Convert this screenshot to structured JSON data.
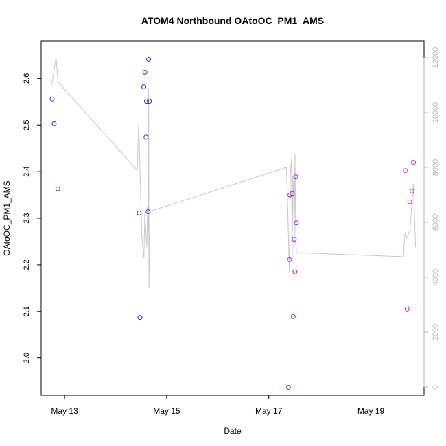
{
  "chart_data": {
    "type": "scatter",
    "title": "ATOM4 Northbound OAtoOC_PM1_AMS",
    "xlabel": "Date",
    "ylabel": "OAtoOC_PM1_AMS",
    "x_ticks": [
      "May 13",
      "May 15",
      "May 17",
      "May 19"
    ],
    "x_tick_dates": [
      "2018-05-13",
      "2018-05-15",
      "2018-05-17",
      "2018-05-19"
    ],
    "xlim": [
      "2018-05-12 13:00",
      "2018-05-20 01:00"
    ],
    "ylim": [
      1.92,
      2.68
    ],
    "y_ticks": [
      2.0,
      2.1,
      2.2,
      2.3,
      2.4,
      2.5,
      2.6
    ],
    "y_tick_labels": [
      "2.0",
      "2.1",
      "2.2",
      "2.3",
      "2.4",
      "2.5",
      "2.6"
    ],
    "y2lim": [
      -300,
      12600
    ],
    "y2_ticks": [
      0,
      2000,
      4000,
      6000,
      8000,
      10000,
      12000
    ],
    "y2_tick_labels": [
      "0",
      "2000",
      "4000",
      "6000",
      "8000",
      "10000",
      "12000"
    ],
    "grid": false,
    "colors": {
      "line": "#c8c8c8",
      "axis": "#000000",
      "axis2": "#b4b4b4",
      "early": "#2a2af0",
      "mid": "#8a2ad8",
      "late": "#e020e0"
    },
    "points": [
      {
        "x": "2018-05-12 18:10",
        "y": 2.556,
        "color": "#2a2af0"
      },
      {
        "x": "2018-05-12 19:05",
        "y": 2.503,
        "color": "#2a2af0"
      },
      {
        "x": "2018-05-12 20:50",
        "y": 2.363,
        "color": "#2a2af0"
      },
      {
        "x": "2018-05-14 11:05",
        "y": 2.311,
        "color": "#2a2af0"
      },
      {
        "x": "2018-05-14 11:25",
        "y": 2.087,
        "color": "#2a2af0"
      },
      {
        "x": "2018-05-14 13:15",
        "y": 2.582,
        "color": "#2a2af0"
      },
      {
        "x": "2018-05-14 13:45",
        "y": 2.613,
        "color": "#2a2af0"
      },
      {
        "x": "2018-05-14 14:15",
        "y": 2.474,
        "color": "#2a2af0"
      },
      {
        "x": "2018-05-14 14:30",
        "y": 2.551,
        "color": "#2a2af0"
      },
      {
        "x": "2018-05-14 15:15",
        "y": 2.314,
        "color": "#2a2af0"
      },
      {
        "x": "2018-05-14 15:30",
        "y": 2.641,
        "color": "#2a2af0"
      },
      {
        "x": "2018-05-14 15:50",
        "y": 2.551,
        "color": "#2a2af0"
      },
      {
        "x": "2018-05-17 09:15",
        "y": 1.937,
        "color": "#8a2ad8"
      },
      {
        "x": "2018-05-17 09:45",
        "y": 2.211,
        "color": "#8a2ad8"
      },
      {
        "x": "2018-05-17 10:00",
        "y": 2.35,
        "color": "#8a2ad8"
      },
      {
        "x": "2018-05-17 11:00",
        "y": 2.353,
        "color": "#8a2ad8"
      },
      {
        "x": "2018-05-17 11:30",
        "y": 2.089,
        "color": "#8a2ad8"
      },
      {
        "x": "2018-05-17 12:00",
        "y": 2.255,
        "color": "#8a2ad8"
      },
      {
        "x": "2018-05-17 12:20",
        "y": 2.185,
        "color": "#8a2ad8"
      },
      {
        "x": "2018-05-17 12:40",
        "y": 2.389,
        "color": "#8a2ad8"
      },
      {
        "x": "2018-05-17 13:00",
        "y": 2.29,
        "color": "#8a2ad8"
      },
      {
        "x": "2018-05-19 16:15",
        "y": 2.402,
        "color": "#e020e0"
      },
      {
        "x": "2018-05-19 17:00",
        "y": 2.105,
        "color": "#e020e0"
      },
      {
        "x": "2018-05-19 18:15",
        "y": 2.335,
        "color": "#e020e0"
      },
      {
        "x": "2018-05-19 19:20",
        "y": 2.358,
        "color": "#e020e0"
      },
      {
        "x": "2018-05-19 20:00",
        "y": 2.42,
        "color": "#e020e0"
      }
    ],
    "line_series": {
      "axis": "right",
      "points": [
        [
          "2018-05-12 18:00",
          11000
        ],
        [
          "2018-05-12 20:00",
          12000
        ],
        [
          "2018-05-12 21:00",
          11100
        ],
        [
          "2018-05-14 10:10",
          7900
        ],
        [
          "2018-05-14 10:50",
          9600
        ],
        [
          "2018-05-14 11:20",
          8400
        ],
        [
          "2018-05-14 12:20",
          5500
        ],
        [
          "2018-05-14 13:20",
          4700
        ],
        [
          "2018-05-14 13:40",
          6300
        ],
        [
          "2018-05-14 14:40",
          5100
        ],
        [
          "2018-05-14 15:00",
          6600
        ],
        [
          "2018-05-14 15:20",
          5600
        ],
        [
          "2018-05-14 15:30",
          10900
        ],
        [
          "2018-05-14 15:40",
          3600
        ],
        [
          "2018-05-14 16:10",
          6400
        ],
        [
          "2018-05-17 08:20",
          8000
        ],
        [
          "2018-05-17 08:40",
          7200
        ],
        [
          "2018-05-17 09:40",
          4200
        ],
        [
          "2018-05-17 10:10",
          7800
        ],
        [
          "2018-05-17 10:40",
          8300
        ],
        [
          "2018-05-17 11:00",
          4600
        ],
        [
          "2018-05-17 11:20",
          7700
        ],
        [
          "2018-05-17 11:40",
          6900
        ],
        [
          "2018-05-17 12:00",
          5000
        ],
        [
          "2018-05-17 12:20",
          8500
        ],
        [
          "2018-05-17 12:40",
          5700
        ],
        [
          "2018-05-17 13:00",
          4900
        ],
        [
          "2018-05-19 15:20",
          4750
        ],
        [
          "2018-05-19 16:00",
          5600
        ],
        [
          "2018-05-19 16:40",
          5400
        ],
        [
          "2018-05-19 18:20",
          5700
        ],
        [
          "2018-05-19 20:00",
          7400
        ],
        [
          "2018-05-19 21:00",
          5100
        ]
      ]
    }
  }
}
